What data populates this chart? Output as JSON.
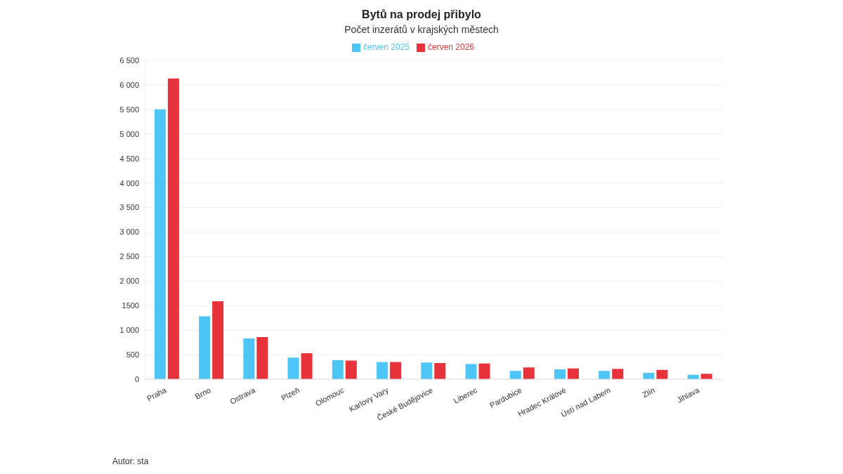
{
  "chart_data": {
    "type": "bar",
    "title": "Bytů na prodej přibylo",
    "subtitle": "Počet inzerátů v krajských městech",
    "categories": [
      "Praha",
      "Brno",
      "Ostrava",
      "Plzeň",
      "Olomouc",
      "Karlovy Vary",
      "České Budějovice",
      "Liberec",
      "Pardubice",
      "Hradec Králové",
      "Ústí nad Labem",
      "Zlín",
      "Jihlava"
    ],
    "series": [
      {
        "name": "červen 2025",
        "color": "#4dc6f5",
        "values": [
          5500,
          1280,
          830,
          440,
          390,
          350,
          340,
          310,
          170,
          200,
          170,
          130,
          90
        ]
      },
      {
        "name": "červen 2026",
        "color": "#e8333c",
        "values": [
          6130,
          1590,
          860,
          530,
          380,
          350,
          330,
          320,
          240,
          220,
          210,
          190,
          110
        ]
      }
    ],
    "ylim": [
      0,
      6500
    ],
    "yticks": [
      0,
      500,
      {
        "value": 1000,
        "label": "1 000"
      },
      {
        "value": 1500,
        "label": "1500"
      },
      {
        "value": 2000,
        "label": "2 000"
      },
      {
        "value": 2500,
        "label": "2 500"
      },
      {
        "value": 3000,
        "label": "3 000"
      },
      {
        "value": 3500,
        "label": "3 500"
      },
      {
        "value": 4000,
        "label": "4 000"
      },
      {
        "value": 4500,
        "label": "4 500"
      },
      {
        "value": 5000,
        "label": "5 000"
      },
      {
        "value": 5500,
        "label": "5 500"
      },
      {
        "value": 6000,
        "label": "6 000"
      },
      {
        "value": 6500,
        "label": "6 500"
      }
    ],
    "grid": "y",
    "legend": "top",
    "annotations": [
      "Autor: sta"
    ]
  }
}
